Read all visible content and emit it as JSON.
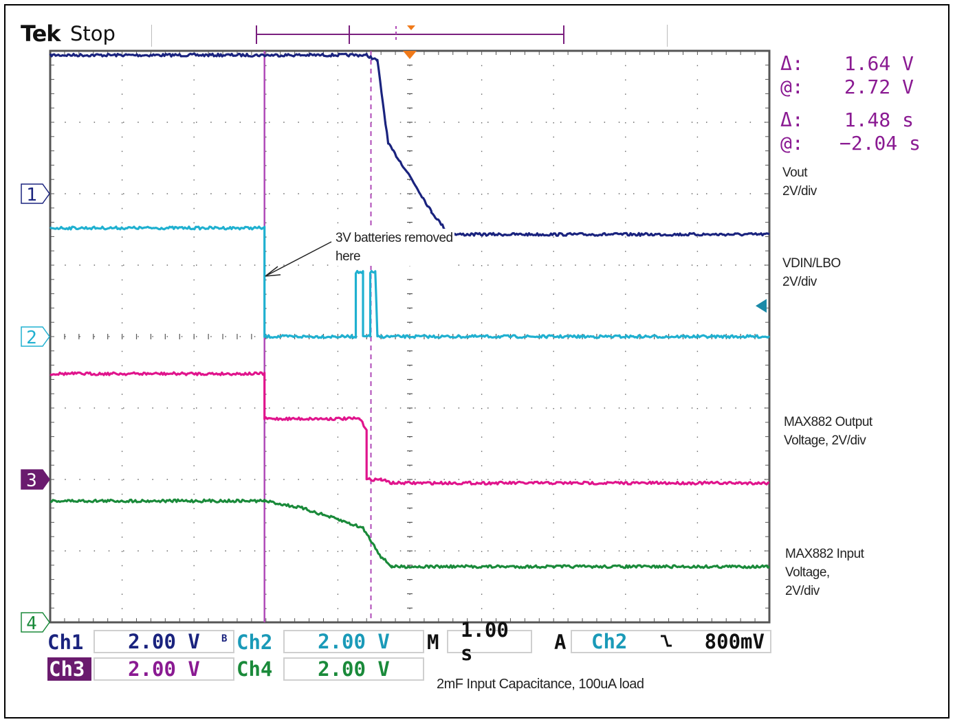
{
  "header": {
    "brand": "Tek",
    "status": "Stop"
  },
  "measurements": [
    {
      "key": "Δ:",
      "value": "1.64 V"
    },
    {
      "key": "@:",
      "value": "2.72 V"
    },
    {
      "key": "Δ:",
      "value": "1.48 s"
    },
    {
      "key": "@:",
      "value": "−2.04 s"
    }
  ],
  "trace_labels": {
    "vout": [
      "Vout",
      "2V/div"
    ],
    "vdin": [
      "VDIN/LBO",
      "2V/div"
    ],
    "max_out": [
      "MAX882 Output",
      "Voltage, 2V/div"
    ],
    "max_in": [
      "MAX882 Input",
      "Voltage,",
      "2V/div"
    ]
  },
  "annotation": [
    "3V batteries removed",
    "here"
  ],
  "settings": {
    "ch1_label": "Ch1",
    "ch1_scale": "2.00 V",
    "ch2_label": "Ch2",
    "ch2_scale": "2.00 V",
    "ch3_label": "Ch3",
    "ch3_scale": "2.00 V",
    "ch4_label": "Ch4",
    "ch4_scale": "2.00 V",
    "bw_mark": "B",
    "timebase_label": "M",
    "timebase": "1.00 s",
    "trigger_label": "A",
    "trigger_source": "Ch2",
    "trigger_slope": "⌐",
    "trigger_level": "800mV"
  },
  "caption": "2mF Input Capacitance, 100uA load",
  "colors": {
    "ch1": "#1a237e",
    "ch2": "#1fb0d0",
    "ch3": "#e0148c",
    "ch4": "#1a8a3a",
    "cursor": "#b04ab8",
    "meas": "#8a1a92"
  },
  "chart_data": {
    "type": "line",
    "x_divisions": 10,
    "y_divisions": 8,
    "x_unit": "s",
    "x_per_div": 1.0,
    "y_per_div": 2.0,
    "x_range_div": [
      0,
      10
    ],
    "y_range_div": [
      0,
      8
    ],
    "grid": true,
    "channel_markers": [
      {
        "label": "1",
        "ground_div": 6
      },
      {
        "label": "2",
        "ground_div": 4
      },
      {
        "label": "3",
        "ground_div": 2
      },
      {
        "label": "4",
        "ground_div": 0
      }
    ],
    "series": [
      {
        "name": "Vout",
        "color": "#1a237e",
        "points": [
          [
            0,
            7.94
          ],
          [
            4.4,
            7.94
          ],
          [
            4.55,
            7.86
          ],
          [
            4.7,
            6.7
          ],
          [
            5.0,
            6.25
          ],
          [
            5.3,
            5.75
          ],
          [
            5.55,
            5.43
          ],
          [
            10,
            5.43
          ]
        ]
      },
      {
        "name": "VDIN/LBO",
        "color": "#1fb0d0",
        "points": [
          [
            0,
            5.52
          ],
          [
            2.98,
            5.52
          ],
          [
            2.98,
            4.0
          ],
          [
            4.25,
            4.0
          ],
          [
            4.25,
            4.9
          ],
          [
            4.35,
            4.9
          ],
          [
            4.35,
            4.0
          ],
          [
            4.45,
            4.0
          ],
          [
            4.45,
            4.9
          ],
          [
            4.52,
            4.9
          ],
          [
            4.55,
            4.0
          ],
          [
            10,
            4.0
          ]
        ]
      },
      {
        "name": "MAX882 Output Voltage",
        "color": "#e0148c",
        "points": [
          [
            0,
            3.48
          ],
          [
            2.98,
            3.48
          ],
          [
            2.98,
            2.85
          ],
          [
            4.3,
            2.85
          ],
          [
            4.4,
            2.7
          ],
          [
            4.4,
            2.0
          ],
          [
            4.6,
            2.0
          ],
          [
            4.75,
            1.95
          ],
          [
            10,
            1.95
          ]
        ]
      },
      {
        "name": "MAX882 Input Voltage",
        "color": "#1a8a3a",
        "points": [
          [
            0,
            1.7
          ],
          [
            2.98,
            1.7
          ],
          [
            3.5,
            1.6
          ],
          [
            4.0,
            1.44
          ],
          [
            4.35,
            1.32
          ],
          [
            4.6,
            0.92
          ],
          [
            4.75,
            0.78
          ],
          [
            10,
            0.78
          ]
        ]
      }
    ],
    "cursors": {
      "vertical": [
        2.98,
        4.46
      ],
      "trigger_x": 5.0
    }
  }
}
